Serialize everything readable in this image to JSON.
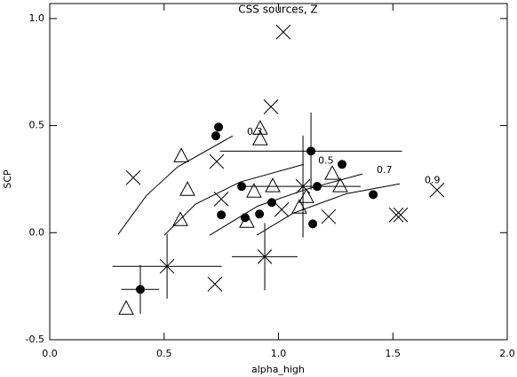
{
  "chart_data": {
    "type": "scatter",
    "title": "CSS sources, Z",
    "x_label": "alpha_high",
    "y_label": "SCP",
    "xlim": [
      0,
      2.0
    ],
    "ylim": [
      -0.5,
      1.07
    ],
    "xticks": [
      {
        "value": 0,
        "label": "0.0"
      },
      {
        "value": 0.5,
        "label": "0.5"
      },
      {
        "value": 1,
        "label": "1.0"
      },
      {
        "value": 1.5,
        "label": "1.5"
      },
      {
        "value": 2,
        "label": "2.0"
      }
    ],
    "yticks": [
      {
        "value": -0.5,
        "label": "-0.5"
      },
      {
        "value": 0,
        "label": "0.0"
      },
      {
        "value": 0.5,
        "label": "0.5"
      },
      {
        "value": 1,
        "label": "1.0"
      }
    ],
    "color": "#000000",
    "series": [
      {
        "marker": "circle",
        "x": [
          0.738,
          0.726,
          1.142,
          1.278,
          0.839,
          1.169,
          1.414,
          0.75,
          0.854,
          0.917,
          0.971,
          1.15,
          0.396
        ],
        "values": [
          0.493,
          0.452,
          0.381,
          0.319,
          0.216,
          0.216,
          0.178,
          0.083,
          0.07,
          0.087,
          0.141,
          0.041,
          -0.265
        ]
      },
      {
        "marker": "triangle",
        "x": [
          0.92,
          0.92,
          0.575,
          0.602,
          0.571,
          0.893,
          0.975,
          0.862,
          1.091,
          1.122,
          1.235,
          1.27,
          0.334
        ],
        "values": [
          0.485,
          0.435,
          0.356,
          0.199,
          0.058,
          0.191,
          0.216,
          0.05,
          0.116,
          0.166,
          0.274,
          0.216,
          -0.356
        ]
      },
      {
        "marker": "cross",
        "x": [
          1.021,
          0.967,
          0.365,
          0.73,
          0.75,
          1.014,
          1.107,
          1.219,
          1.515,
          1.534,
          1.693,
          0.513,
          0.94,
          0.722
        ],
        "values": [
          0.937,
          0.588,
          0.257,
          0.332,
          0.157,
          0.108,
          0.216,
          0.075,
          0.083,
          0.083,
          0.199,
          -0.157,
          -0.112,
          -0.24
        ]
      }
    ],
    "error_bars": [
      {
        "x": 0.513,
        "y": -0.157,
        "xerr": 0.239,
        "yerr": 0.151
      },
      {
        "x": 0.396,
        "y": -0.265,
        "xerr": 0.083,
        "yerr": 0.114
      },
      {
        "x": 0.94,
        "y": -0.112,
        "xerr": 0.144,
        "yerr": 0.157
      },
      {
        "x": 1.142,
        "y": 0.381,
        "xerr": 0.398,
        "yerr": 0.18
      },
      {
        "x": 1.107,
        "y": 0.216,
        "xerr": 0.252,
        "yerr": 0.238
      }
    ],
    "curves": [
      {
        "name": "0.3",
        "x": [
          0.299,
          0.423,
          0.559,
          0.8
        ],
        "values": [
          -0.008,
          0.174,
          0.307,
          0.452
        ]
      },
      {
        "name": "0.5",
        "x": [
          0.501,
          0.637,
          0.831,
          1.111
        ],
        "values": [
          -0.012,
          0.133,
          0.236,
          0.319
        ]
      },
      {
        "name": "0.7",
        "x": [
          0.699,
          0.909,
          1.122,
          1.367
        ],
        "values": [
          -0.012,
          0.124,
          0.203,
          0.274
        ]
      },
      {
        "name": "0.9",
        "x": [
          0.905,
          1.064,
          1.297,
          1.53
        ],
        "values": [
          -0.012,
          0.091,
          0.182,
          0.228
        ]
      }
    ]
  }
}
